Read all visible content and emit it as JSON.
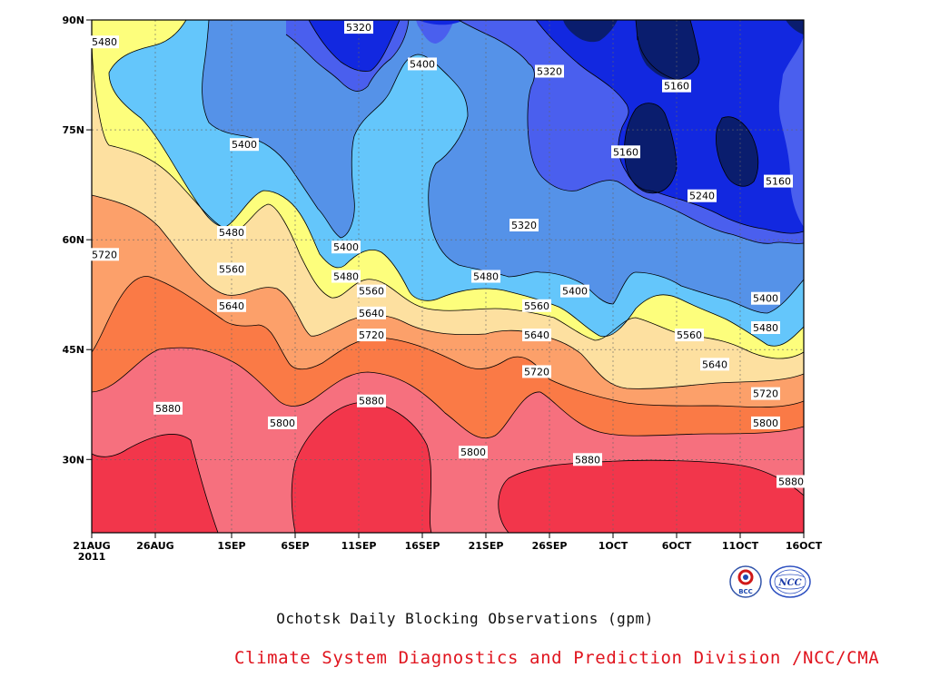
{
  "chart_data": {
    "type": "heatmap",
    "title": "Ochotsk Daily Blocking Observations (gpm)",
    "xlabel": "",
    "ylabel": "",
    "x_ticks": [
      "21AUG\n2011",
      "26AUG",
      "1SEP",
      "6SEP",
      "11SEP",
      "16SEP",
      "21SEP",
      "26SEP",
      "1OCT",
      "6OCT",
      "11OCT",
      "16OCT"
    ],
    "x_range": [
      "2011-08-21",
      "2011-10-16"
    ],
    "y_ticks": [
      "30N",
      "45N",
      "60N",
      "75N",
      "90N"
    ],
    "y_range_deg": [
      20,
      90
    ],
    "contour_levels": [
      5160,
      5240,
      5320,
      5400,
      5480,
      5560,
      5640,
      5720,
      5800,
      5880
    ],
    "grid": true,
    "contour_labels": [
      {
        "date": "2011-08-22",
        "lat": 87,
        "value": 5480
      },
      {
        "date": "2011-09-02",
        "lat": 73,
        "value": 5400
      },
      {
        "date": "2011-09-11",
        "lat": 89,
        "value": 5320
      },
      {
        "date": "2011-09-16",
        "lat": 84,
        "value": 5400
      },
      {
        "date": "2011-09-26",
        "lat": 83,
        "value": 5320
      },
      {
        "date": "2011-10-06",
        "lat": 81,
        "value": 5160
      },
      {
        "date": "2011-10-02",
        "lat": 72,
        "value": 5160
      },
      {
        "date": "2011-10-08",
        "lat": 66,
        "value": 5240
      },
      {
        "date": "2011-10-14",
        "lat": 68,
        "value": 5160
      },
      {
        "date": "2011-09-24",
        "lat": 62,
        "value": 5320
      },
      {
        "date": "2011-09-01",
        "lat": 61,
        "value": 5480
      },
      {
        "date": "2011-09-10",
        "lat": 59,
        "value": 5400
      },
      {
        "date": "2011-08-22",
        "lat": 58,
        "value": 5720
      },
      {
        "date": "2011-09-01",
        "lat": 56,
        "value": 5560
      },
      {
        "date": "2011-09-10",
        "lat": 55,
        "value": 5480
      },
      {
        "date": "2011-09-12",
        "lat": 53,
        "value": 5560
      },
      {
        "date": "2011-09-21",
        "lat": 55,
        "value": 5480
      },
      {
        "date": "2011-09-28",
        "lat": 53,
        "value": 5400
      },
      {
        "date": "2011-10-13",
        "lat": 52,
        "value": 5400
      },
      {
        "date": "2011-09-01",
        "lat": 51,
        "value": 5640
      },
      {
        "date": "2011-09-12",
        "lat": 50,
        "value": 5640
      },
      {
        "date": "2011-09-25",
        "lat": 51,
        "value": 5560
      },
      {
        "date": "2011-10-13",
        "lat": 48,
        "value": 5480
      },
      {
        "date": "2011-10-07",
        "lat": 47,
        "value": 5560
      },
      {
        "date": "2011-09-12",
        "lat": 47,
        "value": 5720
      },
      {
        "date": "2011-09-25",
        "lat": 47,
        "value": 5640
      },
      {
        "date": "2011-10-09",
        "lat": 43,
        "value": 5640
      },
      {
        "date": "2011-09-25",
        "lat": 42,
        "value": 5720
      },
      {
        "date": "2011-10-13",
        "lat": 39,
        "value": 5720
      },
      {
        "date": "2011-08-27",
        "lat": 37,
        "value": 5880
      },
      {
        "date": "2011-09-12",
        "lat": 38,
        "value": 5880
      },
      {
        "date": "2011-09-05",
        "lat": 35,
        "value": 5800
      },
      {
        "date": "2011-10-13",
        "lat": 35,
        "value": 5800
      },
      {
        "date": "2011-09-20",
        "lat": 31,
        "value": 5800
      },
      {
        "date": "2011-09-29",
        "lat": 30,
        "value": 5880
      },
      {
        "date": "2011-10-15",
        "lat": 27,
        "value": 5880
      }
    ]
  },
  "colors": {
    "c5880": "#f2364b",
    "c5800": "#f6707e",
    "c5720": "#fa7a46",
    "c5640": "#fca06a",
    "c5560": "#fde0a0",
    "c5480": "#fdfe7c",
    "c5400": "#64c6fb",
    "c5320": "#5592e8",
    "c5240": "#4a5fee",
    "c5160": "#1228e0",
    "c5080": "#0a1d6e"
  },
  "logos": {
    "left_text": "BCC",
    "right_text": "NCC"
  },
  "captions": {
    "title": "Ochotsk Daily Blocking Observations (gpm)",
    "credit": "Climate System Diagnostics and Prediction Division /NCC/CMA"
  }
}
